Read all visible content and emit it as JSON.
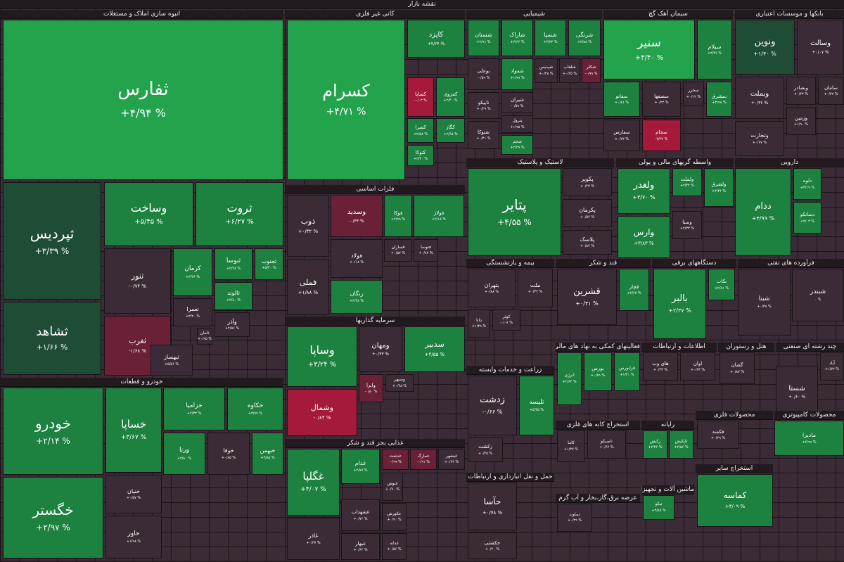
{
  "title": "نقشه بازار",
  "sectors": [
    {
      "name": "انبوه سازی املاک و مستغلات",
      "tiles": [
        {
          "name": "ثفارس",
          "change": "+۴/۹۴ %"
        },
        {
          "name": "ثپردیس",
          "change": "+۳/۳۹ %"
        },
        {
          "name": "ثشاهد",
          "change": "+۱/۶۶ %"
        },
        {
          "name": "وساخت",
          "change": "+۵/۴۵ %"
        },
        {
          "name": "ثروت",
          "change": "+۶/۲۷ %"
        },
        {
          "name": "ثنور",
          "change": "-۰/۷۴ %"
        },
        {
          "name": "ثغرب",
          "change": "-۱/۶۸ %"
        },
        {
          "name": "کرمان",
          "change": "+۳/۴۶ %"
        },
        {
          "name": "ثنوسا",
          "change": "+۲/۲۸ %"
        },
        {
          "name": "ثجنوب",
          "change": "+۵/۲۰ %"
        },
        {
          "name": "ثالوند",
          "change": "+۳/۸۰ %"
        },
        {
          "name": "تعمرا",
          "change": "+۳/۲۰ %"
        },
        {
          "name": "وآذر",
          "change": "+۲/۵۶ %"
        },
        {
          "name": "ثبهساز",
          "change": "+۵/۵۶ %"
        },
        {
          "name": "ثامان",
          "change": "+۰/۹۵ %"
        }
      ]
    },
    {
      "name": "خودرو و قطعات",
      "tiles": [
        {
          "name": "خودرو",
          "change": "+۲/۱۴ %"
        },
        {
          "name": "خگستر",
          "change": "+۲/۹۷ %"
        },
        {
          "name": "خساپا",
          "change": "+۳/۶۷ %"
        },
        {
          "name": "خزامیا",
          "change": "+۲/۳۳ %"
        },
        {
          "name": "خکاوه",
          "change": "+۳/۹۹ %"
        },
        {
          "name": "ورنا",
          "change": "+۲/۸۰ %"
        },
        {
          "name": "خوقا",
          "change": "+۰/۸۵ %"
        },
        {
          "name": "خبهمن",
          "change": "+۳/۸۵ %"
        },
        {
          "name": "خنیان",
          "change": "+۰/۵۷ %"
        },
        {
          "name": "خاور",
          "change": "+۱/۹۸ %"
        }
      ]
    },
    {
      "name": "کانی غیر فلزی",
      "tiles": [
        {
          "name": "کسرام",
          "change": "+۴/۷۱ %"
        },
        {
          "name": "کایزد",
          "change": "+۴/۲۴ %"
        },
        {
          "name": "کساپا",
          "change": "-۰/۰۳ %"
        },
        {
          "name": "کفزوی",
          "change": "+۲/۴۰ %"
        },
        {
          "name": "کسرا",
          "change": "+۲/۵۸ %"
        },
        {
          "name": "کگاز",
          "change": "+۲/۶۵ %"
        },
        {
          "name": "کتوکا",
          "change": "+۲/۳۰ %"
        }
      ]
    },
    {
      "name": "شیمیایی",
      "tiles": [
        {
          "name": "شستان",
          "change": "+۲/۹۱ %"
        },
        {
          "name": "شاراک",
          "change": "+۳/۶۶ %"
        },
        {
          "name": "شسپا",
          "change": "+۴/۳۳ %"
        },
        {
          "name": "شرنگی",
          "change": "+۳/۸۸ %"
        },
        {
          "name": "بوعلی",
          "change": "-۰/۵۹ %"
        },
        {
          "name": "شمواد",
          "change": "+۱/۹۹ %"
        },
        {
          "name": "شپدیس",
          "change": "+۰/۳۸ %"
        },
        {
          "name": "شلعاب",
          "change": "+۰/۲۵ %"
        },
        {
          "name": "شکلر",
          "change": "-۰/۹۹ %"
        },
        {
          "name": "تاپیکو",
          "change": "+۰/۲۹ %"
        },
        {
          "name": "شیران",
          "change": "-۰/۵۹ %"
        },
        {
          "name": "پترول",
          "change": "+۱/۹۵ %"
        },
        {
          "name": "شجم",
          "change": "+۲/۲۹ %"
        },
        {
          "name": "شتوکا",
          "change": "+۰/۴۱ %"
        }
      ]
    },
    {
      "name": "سیمان آهک گچ",
      "tiles": [
        {
          "name": "سنیر",
          "change": "+۴/۴۰ %"
        },
        {
          "name": "سیلام",
          "change": "+۳/۴۶ %"
        },
        {
          "name": "سفانو",
          "change": "+۰/۸۱ %"
        },
        {
          "name": "سصفها",
          "change": "+۰/۲۳ %"
        },
        {
          "name": "سخزر",
          "change": "+۰/۱۲ %"
        },
        {
          "name": "سشرق",
          "change": "+۳/۹۸ %"
        },
        {
          "name": "سجام",
          "change": "-۳/۳۲ %"
        },
        {
          "name": "سفارس",
          "change": "+۰/۲۳ %"
        }
      ]
    },
    {
      "name": "بانکها و موسسات اعتباری",
      "tiles": [
        {
          "name": "ونوین",
          "change": "+۱/۴۰ %"
        },
        {
          "name": "وسالت",
          "change": "+۰/۰۷ %"
        },
        {
          "name": "وبملت",
          "change": "+۰/۳۶ %"
        },
        {
          "name": "وبصادر",
          "change": "+۰/۴۳ %"
        },
        {
          "name": "سامان",
          "change": "+۰/۳۷ %"
        },
        {
          "name": "وتجارت",
          "change": "+۰/۶۷ %"
        },
        {
          "name": "وزمین",
          "change": "+۱/۹۰ %"
        }
      ]
    },
    {
      "name": "فلزات اساسی",
      "tiles": [
        {
          "name": "ذوب",
          "change": "+۰/۳۲ %"
        },
        {
          "name": "وسدید",
          "change": "-۰/۳۳ %"
        },
        {
          "name": "فوکا",
          "change": "+۲/۹۹ %"
        },
        {
          "name": "فولاژ",
          "change": "+۲/۱۸ %"
        },
        {
          "name": "فولاد",
          "change": "+۰/۱۸ %"
        },
        {
          "name": "فسازان",
          "change": "+۰/۵۷ %"
        },
        {
          "name": "فتوسا",
          "change": "+۰/۸۲ %"
        },
        {
          "name": "فملی",
          "change": "+۱/۸۸ %"
        },
        {
          "name": "زنگان",
          "change": "+۲/۴۸ %"
        }
      ]
    },
    {
      "name": "سرمایه گذاریها",
      "tiles": [
        {
          "name": "وساپا",
          "change": "+۳/۲۴ %"
        },
        {
          "name": "ومهان",
          "change": "+۰/۳۳ %"
        },
        {
          "name": "سدبیر",
          "change": "+۴/۵۵ %"
        },
        {
          "name": "وشمال",
          "change": "-۰/۸۴ %"
        },
        {
          "name": "وابرا",
          "change": "-۰/۸۰ %"
        },
        {
          "name": "وسپهر",
          "change": "+۰/۴۸ %"
        }
      ]
    },
    {
      "name": "غذایی بجز قند و شکر",
      "tiles": [
        {
          "name": "غگلپا",
          "change": "+۴/۰۷ %"
        },
        {
          "name": "غدام",
          "change": "+۲/۷۷ %"
        },
        {
          "name": "غدشت",
          "change": "-۰/۹۹ %"
        },
        {
          "name": "غمارگ",
          "change": "-۰/۹۱ %"
        },
        {
          "name": "غبشهر",
          "change": "+۰/۶۴ %"
        },
        {
          "name": "غنوش",
          "change": "+۰/۷۰ %"
        },
        {
          "name": "عکورش",
          "change": "+۰/۹۰ %"
        },
        {
          "name": "غشهداب",
          "change": "+۰/۷۲ %"
        },
        {
          "name": "غاذر",
          "change": "+۰/۳۷ %"
        },
        {
          "name": "غبهار",
          "change": "+۰/۶۲ %"
        },
        {
          "name": "غدانه",
          "change": "+۰/۵۶ %"
        }
      ]
    },
    {
      "name": "لاستیک و پلاستیک",
      "tiles": [
        {
          "name": "پتایر",
          "change": "+۴/۵۵ %"
        },
        {
          "name": "پکویر",
          "change": "+۰/۴۳ %"
        },
        {
          "name": "پکرمان",
          "change": "+۰/۵۴ %"
        },
        {
          "name": "پلاسک",
          "change": "+۰/۸۴ %"
        }
      ]
    },
    {
      "name": "واسطه گریهای مالی و پولی",
      "tiles": [
        {
          "name": "ولغدر",
          "change": "+۳/۷۰ %"
        },
        {
          "name": "ولملت",
          "change": "+۲/۴۴ %"
        },
        {
          "name": "ولشرق",
          "change": "+۳/۴۴ %"
        },
        {
          "name": "وارس",
          "change": "+۳/۸۳ %"
        },
        {
          "name": "وسنا",
          "change": "+۲/۳۳ %"
        }
      ]
    },
    {
      "name": "دارویی",
      "tiles": [
        {
          "name": "ددام",
          "change": "+۴/۹۹ %"
        },
        {
          "name": "دلوه",
          "change": "+۳/۱۹ %"
        },
        {
          "name": "دسانکو",
          "change": "+۴/۰۳ %"
        }
      ]
    },
    {
      "name": "بیمه و بازنشستگی",
      "tiles": [
        {
          "name": "بتهران",
          "change": "+۰/۸۸ %"
        },
        {
          "name": "ملت",
          "change": "+۰/۳۲ %"
        },
        {
          "name": "کوثر",
          "change": "-۰/۰۸ %"
        },
        {
          "name": "دانا",
          "change": "+۱/۳۹ %"
        }
      ]
    },
    {
      "name": "قند و شکر",
      "tiles": [
        {
          "name": "قشرین",
          "change": "+۰/۳۱ %"
        },
        {
          "name": "قچار",
          "change": "+۲/۶۷ %"
        }
      ]
    },
    {
      "name": "دستگاههای برقی",
      "tiles": [
        {
          "name": "بالبر",
          "change": "+۲/۳۷ %"
        },
        {
          "name": "بکاب",
          "change": "+۲/۸۱ %"
        }
      ]
    },
    {
      "name": "فرآورده های نفتی",
      "tiles": [
        {
          "name": "شبنا",
          "change": "+۰/۳۸ %"
        },
        {
          "name": "شبندر",
          "change": "۰ %"
        }
      ]
    },
    {
      "name": "زراعت و خدمات وابسته",
      "tiles": [
        {
          "name": "زدشت",
          "change": "-۰/۶۶ %"
        },
        {
          "name": "تلیسه",
          "change": "+۵/۳۵ %"
        },
        {
          "name": "زکشت",
          "change": "+۰/۴۵ %"
        }
      ]
    },
    {
      "name": "فعالیتهای کمکی به نهاد های مالی",
      "tiles": [
        {
          "name": "انرژی",
          "change": "+۲/۶۲ %"
        },
        {
          "name": "بورس",
          "change": "+۰/۸۹ %"
        },
        {
          "name": "فرابورس",
          "change": "+۱/۲۱ %"
        }
      ]
    },
    {
      "name": "اطلاعات و ارتباطات",
      "tiles": [
        {
          "name": "های وب",
          "change": "+۰/۳۳ %"
        },
        {
          "name": "اوان",
          "change": "+۰/۶۴ %"
        }
      ]
    },
    {
      "name": "هتل و رستوران",
      "tiles": [
        {
          "name": "گشان",
          "change": "+۰/۸۷ %"
        }
      ]
    },
    {
      "name": "چند رشته ای صنعتی",
      "tiles": [
        {
          "name": "شستا",
          "change": "+۰/۶۰ %"
        },
        {
          "name": "آباد",
          "change": "+۱/۷۲ %"
        }
      ]
    },
    {
      "name": "استخراج کانه های فلزی",
      "tiles": [
        {
          "name": "کاما",
          "change": "+۱/۳۷ %"
        },
        {
          "name": "تاصیکو",
          "change": "+۰/۶۴ %"
        }
      ]
    },
    {
      "name": "رایانه",
      "tiles": [
        {
          "name": "رکیش",
          "change": "+۲/۳۶ %"
        },
        {
          "name": "تاپکیش",
          "change": "+۲/۵۶ %"
        }
      ]
    },
    {
      "name": "محصولات فلزی",
      "tiles": [
        {
          "name": "فکمند",
          "change": "+۰/۲۹ %"
        }
      ]
    },
    {
      "name": "محصولات کامپیوتری",
      "tiles": [
        {
          "name": "مادیرا",
          "change": "+۴/۹۹ %"
        }
      ]
    },
    {
      "name": "استخراج سایر",
      "tiles": [
        {
          "name": "کماسه",
          "change": "+۳/۰۹ %"
        }
      ]
    },
    {
      "name": "ماشین آلات و تجهیزات",
      "tiles": [
        {
          "name": "تیکو",
          "change": "+۳/۸۵ %"
        }
      ]
    },
    {
      "name": "حمل و نقل انبارداری و ارتباطات",
      "tiles": [
        {
          "name": "حآسا",
          "change": "+۰/۷۸ %"
        },
        {
          "name": "حکشتی",
          "change": "+۰/۲۰ %"
        }
      ]
    },
    {
      "name": "عرضه برق،گاز،بخار و آب گرم",
      "tiles": [
        {
          "name": "دماوند",
          "change": "+۰/۳۹ %"
        }
      ]
    }
  ]
}
